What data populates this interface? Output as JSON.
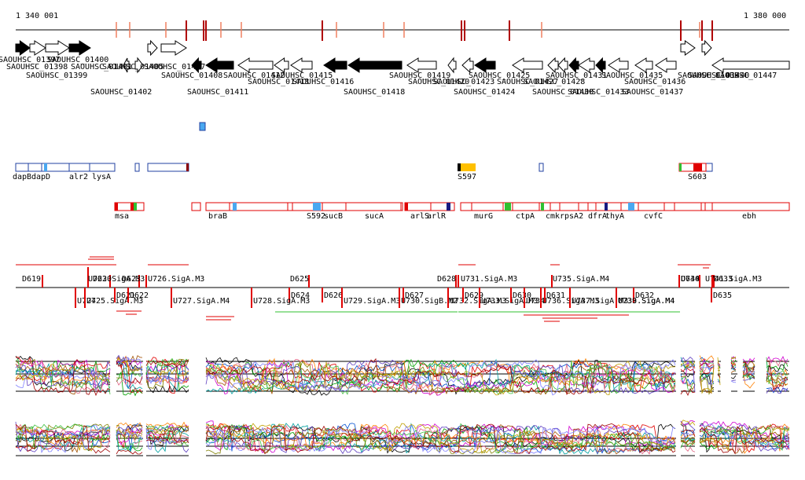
{
  "browser": {
    "start_label": "1 340 001",
    "end_label": "1 380 000"
  },
  "genes": [
    {
      "name": "SAOUHSC_01397",
      "strand": "+",
      "fill": "#000"
    },
    {
      "name": "SAOUHSC_01398",
      "strand": "+",
      "fill": "#fff"
    },
    {
      "name": "SAOUHSC_01399",
      "strand": "+",
      "fill": "#fff"
    },
    {
      "name": "SAOUHSC_01400",
      "strand": "+",
      "fill": "#000"
    },
    {
      "name": "SAOUHSC_01401",
      "strand": "-",
      "fill": "#fff"
    },
    {
      "name": "SAOUHSC_01402",
      "strand": "+",
      "fill": "#fff"
    },
    {
      "name": "SAOUHSC_01405",
      "strand": "+",
      "fill": "#fff"
    },
    {
      "name": "SAOUHSC_01407",
      "strand": "+",
      "fill": "#fff"
    },
    {
      "name": "SAOUHSC_01408",
      "strand": "-",
      "fill": "#000"
    },
    {
      "name": "SAOUHSC_01411",
      "strand": "-",
      "fill": "#000"
    },
    {
      "name": "SAOUHSC_01412",
      "strand": "-",
      "fill": "#fff"
    },
    {
      "name": "SAOUHSC_01413",
      "strand": "-",
      "fill": "#fff"
    },
    {
      "name": "SAOUHSC_01415",
      "strand": "-",
      "fill": "#fff"
    },
    {
      "name": "SAOUHSC_01416",
      "strand": "-",
      "fill": "#000"
    },
    {
      "name": "SAOUHSC_01418",
      "strand": "-",
      "fill": "#000"
    },
    {
      "name": "SAOUHSC_01419",
      "strand": "-",
      "fill": "#fff"
    },
    {
      "name": "SAOUHSC_01420",
      "strand": "-",
      "fill": "#fff"
    },
    {
      "name": "SAOUHSC_01423",
      "strand": "-",
      "fill": "#fff"
    },
    {
      "name": "SAOUHSC_01424",
      "strand": "-",
      "fill": "#000"
    },
    {
      "name": "SAOUHSC_01425",
      "strand": "-",
      "fill": "#fff"
    },
    {
      "name": "SAOUHSC_01427",
      "strand": "-",
      "fill": "#fff"
    },
    {
      "name": "SAOUHSC_01428",
      "strand": "-",
      "fill": "#fff"
    },
    {
      "name": "SAOUHSC_01430",
      "strand": "-",
      "fill": "#000"
    },
    {
      "name": "SAOUHSC_01431",
      "strand": "-",
      "fill": "#fff"
    },
    {
      "name": "SAOUHSC_01433",
      "strand": "-",
      "fill": "#000"
    },
    {
      "name": "SAOUHSC_01435",
      "strand": "-",
      "fill": "#fff"
    },
    {
      "name": "SAOUHSC_01436",
      "strand": "-",
      "fill": "#fff"
    },
    {
      "name": "SAOUHSC_01437",
      "strand": "-",
      "fill": "#fff"
    },
    {
      "name": "SAOUHSC_01439",
      "strand": "+",
      "fill": "#fff"
    },
    {
      "name": "SAOUHSC_01440",
      "strand": "+",
      "fill": "#fff"
    },
    {
      "name": "SAOUHSC_01447",
      "strand": "-",
      "fill": "#fff"
    }
  ],
  "regions": [
    "dapB",
    "dapD",
    "alr2",
    "lysA",
    "S597",
    "S603"
  ],
  "operons": [
    "msa",
    "braB",
    "S592",
    "sucB",
    "sucA",
    "arlS",
    "arlR",
    "murG",
    "ctpA",
    "cmk",
    "rpsA2",
    "dfrA",
    "thyA",
    "cvfC",
    "ebh"
  ],
  "segments_top": [
    "D619",
    "U723.SigA.M3",
    "D620",
    "D623",
    "U726.SigA.M3",
    "D625",
    "D628",
    "U731.SigA.M3",
    "U735.SigA.M4",
    "U740",
    "D634",
    "U741.SigA.M3",
    "D633"
  ],
  "segments_bottom": [
    "U724",
    "U725.SigA.M3",
    "D621",
    "D622",
    "U727.SigA.M4",
    "D624",
    "U728.SigA.M3",
    "D626",
    "U729.SigA.M3",
    "D627",
    "U730.SigB.M2",
    "U732.SigA.M3",
    "D629",
    "U733.SigA.M3",
    "D630",
    "U734",
    "U736.SigA.M3",
    "D631",
    "U737.SigA.M3",
    "U738.SigA.M4",
    "D632",
    "U739.SigA.M4",
    "D635"
  ],
  "colors": {
    "red": "#e00000",
    "darkred": "#b00000",
    "blue": "#2040a0",
    "lightblue": "#4aa8f0",
    "gold": "#ffc000",
    "green": "#30c030"
  }
}
